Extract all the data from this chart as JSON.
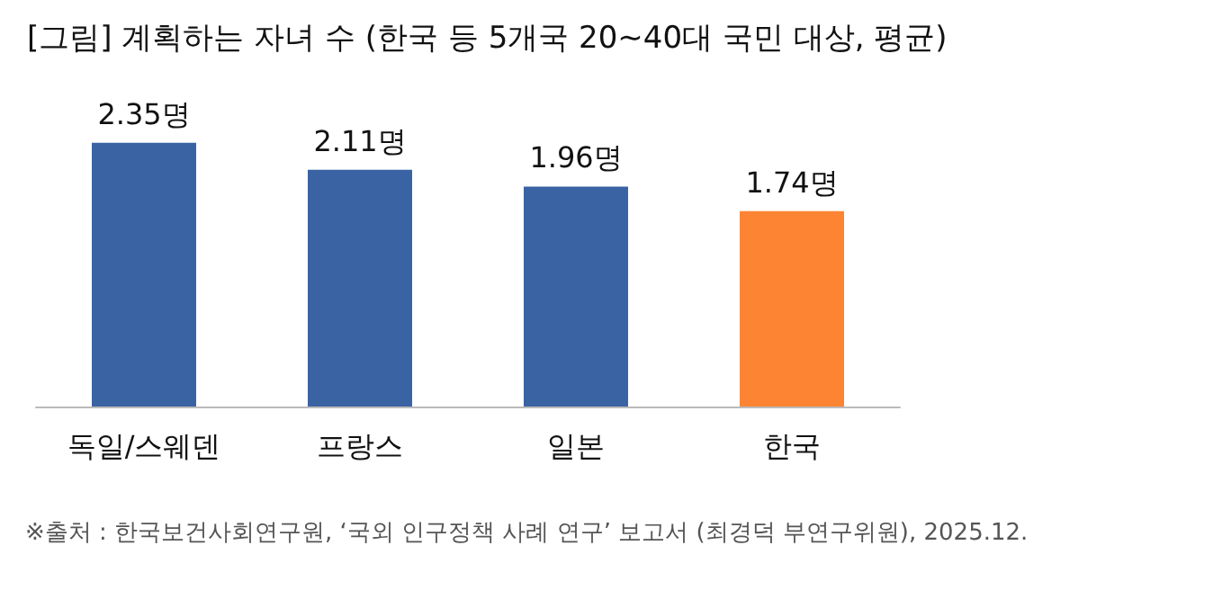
{
  "chart_data": {
    "type": "bar",
    "title": "[그림] 계획하는 자녀 수 (한국 등 5개국 20~40대 국민 대상, 평균)",
    "categories": [
      "독일/스웨덴",
      "프랑스",
      "일본",
      "한국"
    ],
    "values": [
      2.35,
      2.11,
      1.96,
      1.74
    ],
    "colors": [
      "#3a63a3",
      "#3a63a3",
      "#3a63a3",
      "#fd8433"
    ],
    "value_labels": [
      "2.35명",
      "2.11명",
      "1.96명",
      "1.74명"
    ],
    "annotations": [
      "※출처 : 한국보건사회연구원, ‘국외 인구정책 사례 연구’ 보고서 (최경덕 부연구위원), 2025.12."
    ]
  }
}
